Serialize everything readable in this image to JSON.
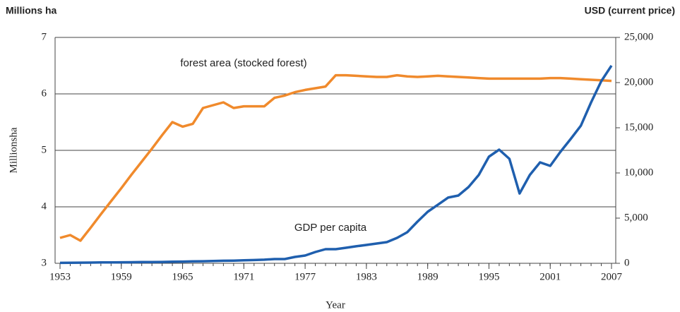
{
  "chart_data": {
    "type": "line",
    "y_label_left": "Millions ha",
    "y_label_right": "USD (current price)",
    "y_axis_title": "Millionsha",
    "x_label": "Year",
    "annotations": [
      "forest area (stocked forest)",
      "GDP per capita"
    ],
    "x": [
      1953,
      1954,
      1955,
      1956,
      1957,
      1958,
      1959,
      1960,
      1961,
      1962,
      1963,
      1964,
      1965,
      1966,
      1967,
      1968,
      1969,
      1970,
      1971,
      1972,
      1973,
      1974,
      1975,
      1976,
      1977,
      1978,
      1979,
      1980,
      1981,
      1982,
      1983,
      1984,
      1985,
      1986,
      1987,
      1988,
      1989,
      1990,
      1991,
      1992,
      1993,
      1994,
      1995,
      1996,
      1997,
      1998,
      1999,
      2000,
      2001,
      2002,
      2003,
      2004,
      2005,
      2006,
      2007
    ],
    "series": [
      {
        "name": "forest area (stocked forest)",
        "color": "#f08a2c",
        "axis": "y",
        "values": [
          3.45,
          3.5,
          3.4,
          3.63,
          3.87,
          4.1,
          4.33,
          4.57,
          4.8,
          5.03,
          5.27,
          5.5,
          5.42,
          5.47,
          5.75,
          5.8,
          5.85,
          5.75,
          5.78,
          5.78,
          5.78,
          5.93,
          5.97,
          6.03,
          6.07,
          6.1,
          6.13,
          6.33,
          6.33,
          6.32,
          6.31,
          6.3,
          6.3,
          6.33,
          6.31,
          6.3,
          6.31,
          6.32,
          6.31,
          6.3,
          6.29,
          6.28,
          6.27,
          6.27,
          6.27,
          6.27,
          6.27,
          6.27,
          6.28,
          6.28,
          6.27,
          6.26,
          6.25,
          6.24,
          6.23
        ]
      },
      {
        "name": "GDP per capita",
        "color": "#1f5fae",
        "axis": "y2",
        "values": [
          50,
          60,
          70,
          80,
          90,
          100,
          110,
          120,
          130,
          140,
          150,
          170,
          190,
          210,
          230,
          250,
          280,
          300,
          330,
          360,
          400,
          470,
          470,
          700,
          860,
          1250,
          1560,
          1560,
          1720,
          1880,
          2030,
          2190,
          2340,
          2810,
          3440,
          4610,
          5700,
          6480,
          7270,
          7500,
          8440,
          9770,
          11800,
          12580,
          11560,
          7730,
          9770,
          11170,
          10780,
          12340,
          13750,
          15230,
          17810,
          20160,
          21880
        ]
      }
    ],
    "xlim": [
      1953,
      2007
    ],
    "xticks": [
      1953,
      1959,
      1965,
      1971,
      1977,
      1983,
      1989,
      1995,
      2001,
      2007
    ],
    "ylim": [
      3,
      7
    ],
    "yticks": [
      3,
      4,
      5,
      6,
      7
    ],
    "y2lim": [
      0,
      25000
    ],
    "y2ticks": [
      0,
      {
        "value": 5000,
        "label": "5,000"
      },
      {
        "value": 10000,
        "label": "10,000"
      },
      {
        "value": 15000,
        "label": "15,000"
      },
      {
        "value": 20000,
        "label": "20,000"
      },
      {
        "value": 25000,
        "label": "25,000"
      }
    ],
    "grid": true
  }
}
